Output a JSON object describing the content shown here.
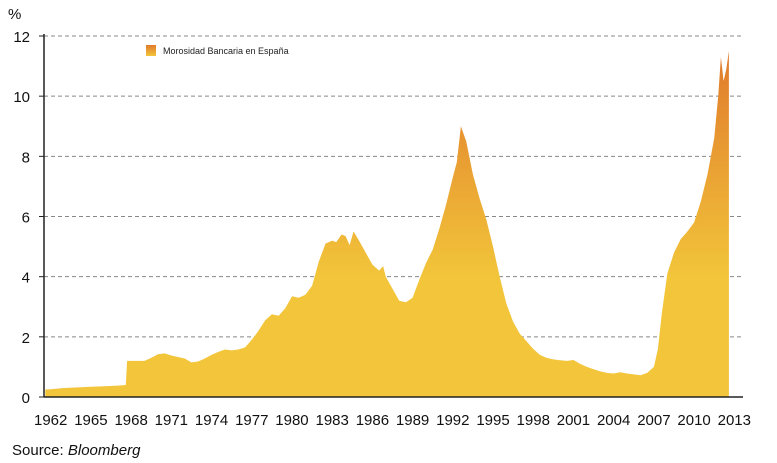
{
  "chart_data": {
    "type": "area",
    "unit_label": "%",
    "legend_label": "Morosidad Bancaria en España",
    "legend_position": "top-left",
    "grid": "horizontal dashed",
    "ylim": [
      0,
      12
    ],
    "yticks": [
      0,
      2,
      4,
      6,
      8,
      10,
      12
    ],
    "xlim": [
      1961.5,
      2013.5
    ],
    "xticks": [
      "1962",
      "1965",
      "1968",
      "1971",
      "1974",
      "1977",
      "1980",
      "1983",
      "1986",
      "1989",
      "1992",
      "1995",
      "1998",
      "2001",
      "2004",
      "2007",
      "2010",
      "2013"
    ],
    "colors": {
      "fill_low": "#f2c53a",
      "fill_high": "#e07a2c",
      "grid": "#888888",
      "axis": "#222222"
    },
    "series": [
      {
        "points": [
          [
            1961.6,
            0.25
          ],
          [
            1962.0,
            0.26
          ],
          [
            1963.0,
            0.3
          ],
          [
            1964.0,
            0.32
          ],
          [
            1965.0,
            0.34
          ],
          [
            1966.0,
            0.36
          ],
          [
            1967.0,
            0.38
          ],
          [
            1967.6,
            0.4
          ],
          [
            1967.7,
            1.2
          ],
          [
            1968.0,
            1.2
          ],
          [
            1969.0,
            1.2
          ],
          [
            1969.5,
            1.3
          ],
          [
            1970.0,
            1.42
          ],
          [
            1970.5,
            1.45
          ],
          [
            1971.0,
            1.38
          ],
          [
            1972.0,
            1.28
          ],
          [
            1972.5,
            1.15
          ],
          [
            1973.0,
            1.18
          ],
          [
            1973.5,
            1.28
          ],
          [
            1974.0,
            1.4
          ],
          [
            1974.5,
            1.5
          ],
          [
            1975.0,
            1.58
          ],
          [
            1975.5,
            1.55
          ],
          [
            1976.0,
            1.58
          ],
          [
            1976.5,
            1.65
          ],
          [
            1977.0,
            1.9
          ],
          [
            1977.5,
            2.2
          ],
          [
            1978.0,
            2.55
          ],
          [
            1978.5,
            2.75
          ],
          [
            1979.0,
            2.7
          ],
          [
            1979.5,
            2.95
          ],
          [
            1980.0,
            3.35
          ],
          [
            1980.5,
            3.3
          ],
          [
            1981.0,
            3.4
          ],
          [
            1981.5,
            3.7
          ],
          [
            1982.0,
            4.5
          ],
          [
            1982.5,
            5.1
          ],
          [
            1983.0,
            5.2
          ],
          [
            1983.3,
            5.15
          ],
          [
            1983.7,
            5.4
          ],
          [
            1984.0,
            5.35
          ],
          [
            1984.3,
            5.05
          ],
          [
            1984.6,
            5.5
          ],
          [
            1985.0,
            5.2
          ],
          [
            1985.5,
            4.8
          ],
          [
            1986.0,
            4.4
          ],
          [
            1986.5,
            4.2
          ],
          [
            1986.8,
            4.35
          ],
          [
            1987.0,
            4.0
          ],
          [
            1987.5,
            3.6
          ],
          [
            1988.0,
            3.2
          ],
          [
            1988.5,
            3.15
          ],
          [
            1989.0,
            3.3
          ],
          [
            1989.5,
            3.9
          ],
          [
            1990.0,
            4.45
          ],
          [
            1990.5,
            4.9
          ],
          [
            1991.0,
            5.6
          ],
          [
            1991.5,
            6.4
          ],
          [
            1992.0,
            7.3
          ],
          [
            1992.3,
            7.8
          ],
          [
            1992.6,
            9.0
          ],
          [
            1993.0,
            8.5
          ],
          [
            1993.5,
            7.4
          ],
          [
            1994.0,
            6.6
          ],
          [
            1994.5,
            5.9
          ],
          [
            1995.0,
            5.0
          ],
          [
            1995.5,
            4.0
          ],
          [
            1996.0,
            3.1
          ],
          [
            1996.5,
            2.5
          ],
          [
            1997.0,
            2.1
          ],
          [
            1997.5,
            1.85
          ],
          [
            1998.0,
            1.6
          ],
          [
            1998.5,
            1.4
          ],
          [
            1999.0,
            1.3
          ],
          [
            1999.5,
            1.25
          ],
          [
            2000.0,
            1.22
          ],
          [
            2000.5,
            1.2
          ],
          [
            2001.0,
            1.23
          ],
          [
            2001.5,
            1.1
          ],
          [
            2002.0,
            1.0
          ],
          [
            2002.5,
            0.92
          ],
          [
            2003.0,
            0.85
          ],
          [
            2003.5,
            0.8
          ],
          [
            2004.0,
            0.78
          ],
          [
            2004.5,
            0.82
          ],
          [
            2005.0,
            0.78
          ],
          [
            2005.5,
            0.75
          ],
          [
            2006.0,
            0.72
          ],
          [
            2006.5,
            0.8
          ],
          [
            2007.0,
            1.0
          ],
          [
            2007.3,
            1.6
          ],
          [
            2007.6,
            2.8
          ],
          [
            2008.0,
            4.1
          ],
          [
            2008.5,
            4.8
          ],
          [
            2009.0,
            5.25
          ],
          [
            2009.5,
            5.5
          ],
          [
            2010.0,
            5.8
          ],
          [
            2010.5,
            6.5
          ],
          [
            2011.0,
            7.4
          ],
          [
            2011.5,
            8.6
          ],
          [
            2011.8,
            10.0
          ],
          [
            2012.0,
            11.3
          ],
          [
            2012.2,
            10.5
          ],
          [
            2012.4,
            10.9
          ],
          [
            2012.6,
            11.5
          ]
        ]
      }
    ]
  },
  "source": {
    "prefix": "Source: ",
    "name": "Bloomberg"
  }
}
